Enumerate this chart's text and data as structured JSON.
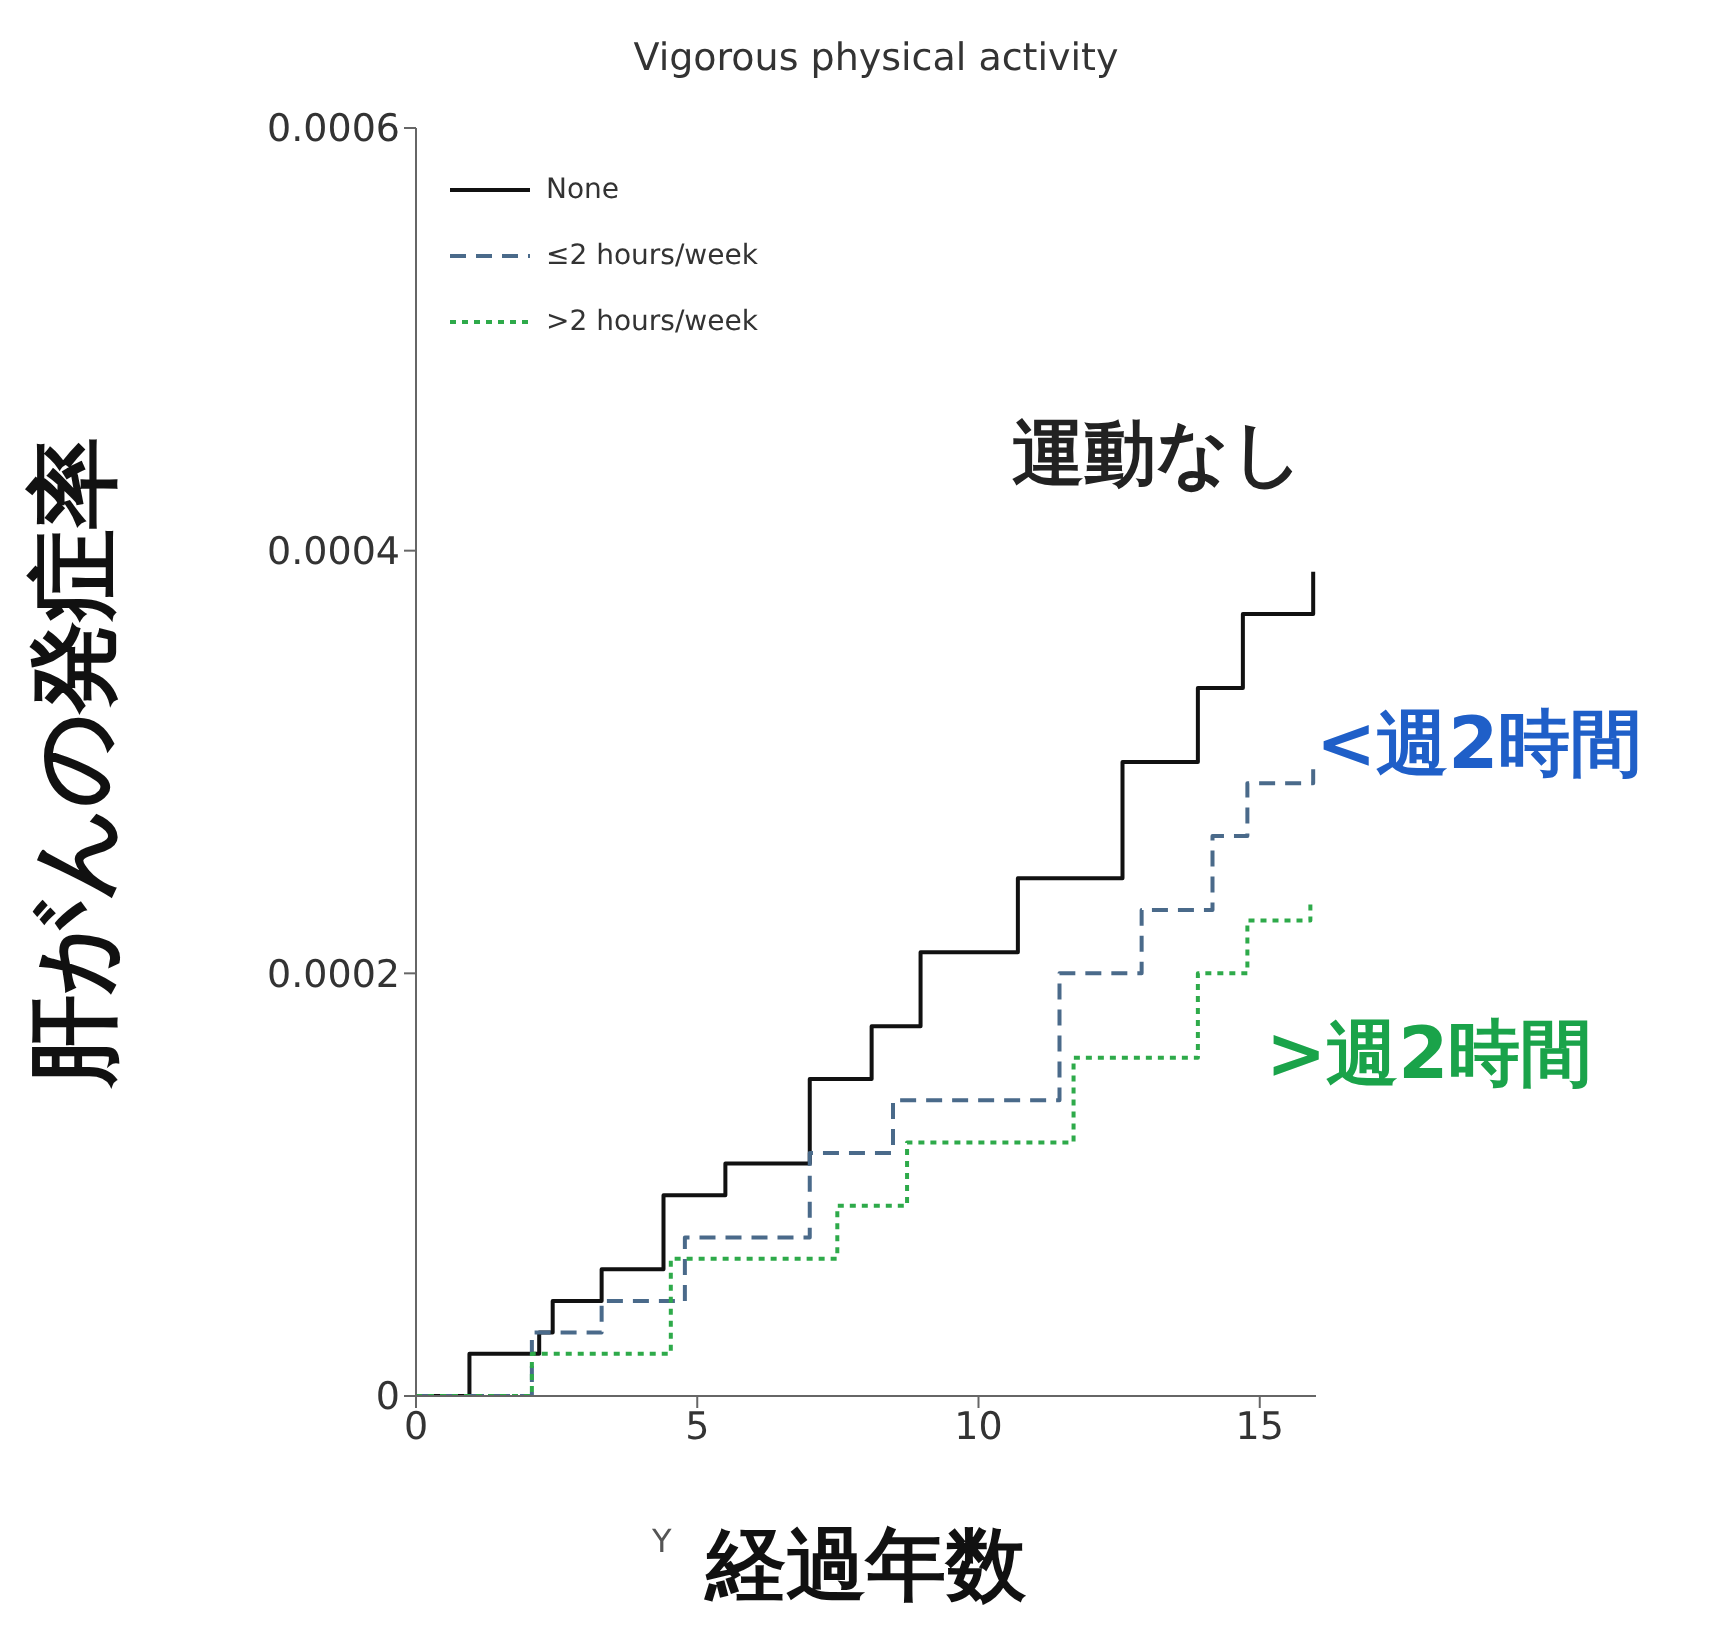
{
  "chart_data": {
    "type": "step",
    "title": "Vigorous physical activity",
    "xlabel": "経過年数",
    "ylabel": "肝がんの発症率",
    "annotations": [
      "運動なし",
      "<週2時間",
      ">週2時間",
      "Y"
    ],
    "xlim": [
      0,
      16
    ],
    "xticks": [
      0,
      5,
      10,
      15
    ],
    "ylim": [
      0,
      0.0006
    ],
    "yticks": [
      0,
      0.0002,
      0.0004,
      0.0006
    ],
    "grid": false,
    "legend": "top left",
    "marker": "none",
    "series": [
      {
        "name": "None",
        "color": "#111111",
        "line_style": "solid",
        "x": [
          0,
          0.08,
          0.95,
          2.19,
          2.43,
          3.3,
          4.4,
          5.5,
          7.0,
          8.1,
          8.97,
          10.7,
          12.56,
          13.9,
          14.7,
          15.5,
          15.95
        ],
        "values": [
          0,
          0,
          2e-05,
          3e-05,
          4.5e-05,
          6e-05,
          9.5e-05,
          0.00011,
          0.00015,
          0.000175,
          0.00021,
          0.000245,
          0.0003,
          0.000335,
          0.00037,
          0.00037,
          0.00039
        ]
      },
      {
        "name": "≤2 hours/week",
        "color": "#4a6a8a",
        "line_style": "dashed",
        "x": [
          0,
          0.08,
          2.06,
          3.3,
          4.78,
          7.0,
          8.48,
          11.44,
          12.9,
          14.16,
          14.78,
          15.5,
          15.95
        ],
        "values": [
          0,
          0,
          3e-05,
          4.5e-05,
          7.5e-05,
          0.000115,
          0.00014,
          0.0002,
          0.00023,
          0.000265,
          0.00029,
          0.00029,
          0.0003
        ]
      },
      {
        "name": ">2 hours/week",
        "color": "#2eaa4a",
        "line_style": "dotted",
        "x": [
          0,
          0.08,
          2.06,
          4.53,
          7.49,
          8.73,
          11.69,
          13.9,
          14.78,
          15.5,
          15.9
        ],
        "values": [
          0,
          0,
          2e-05,
          6.5e-05,
          9e-05,
          0.00012,
          0.00016,
          0.0002,
          0.000225,
          0.000225,
          0.000235
        ]
      }
    ]
  }
}
